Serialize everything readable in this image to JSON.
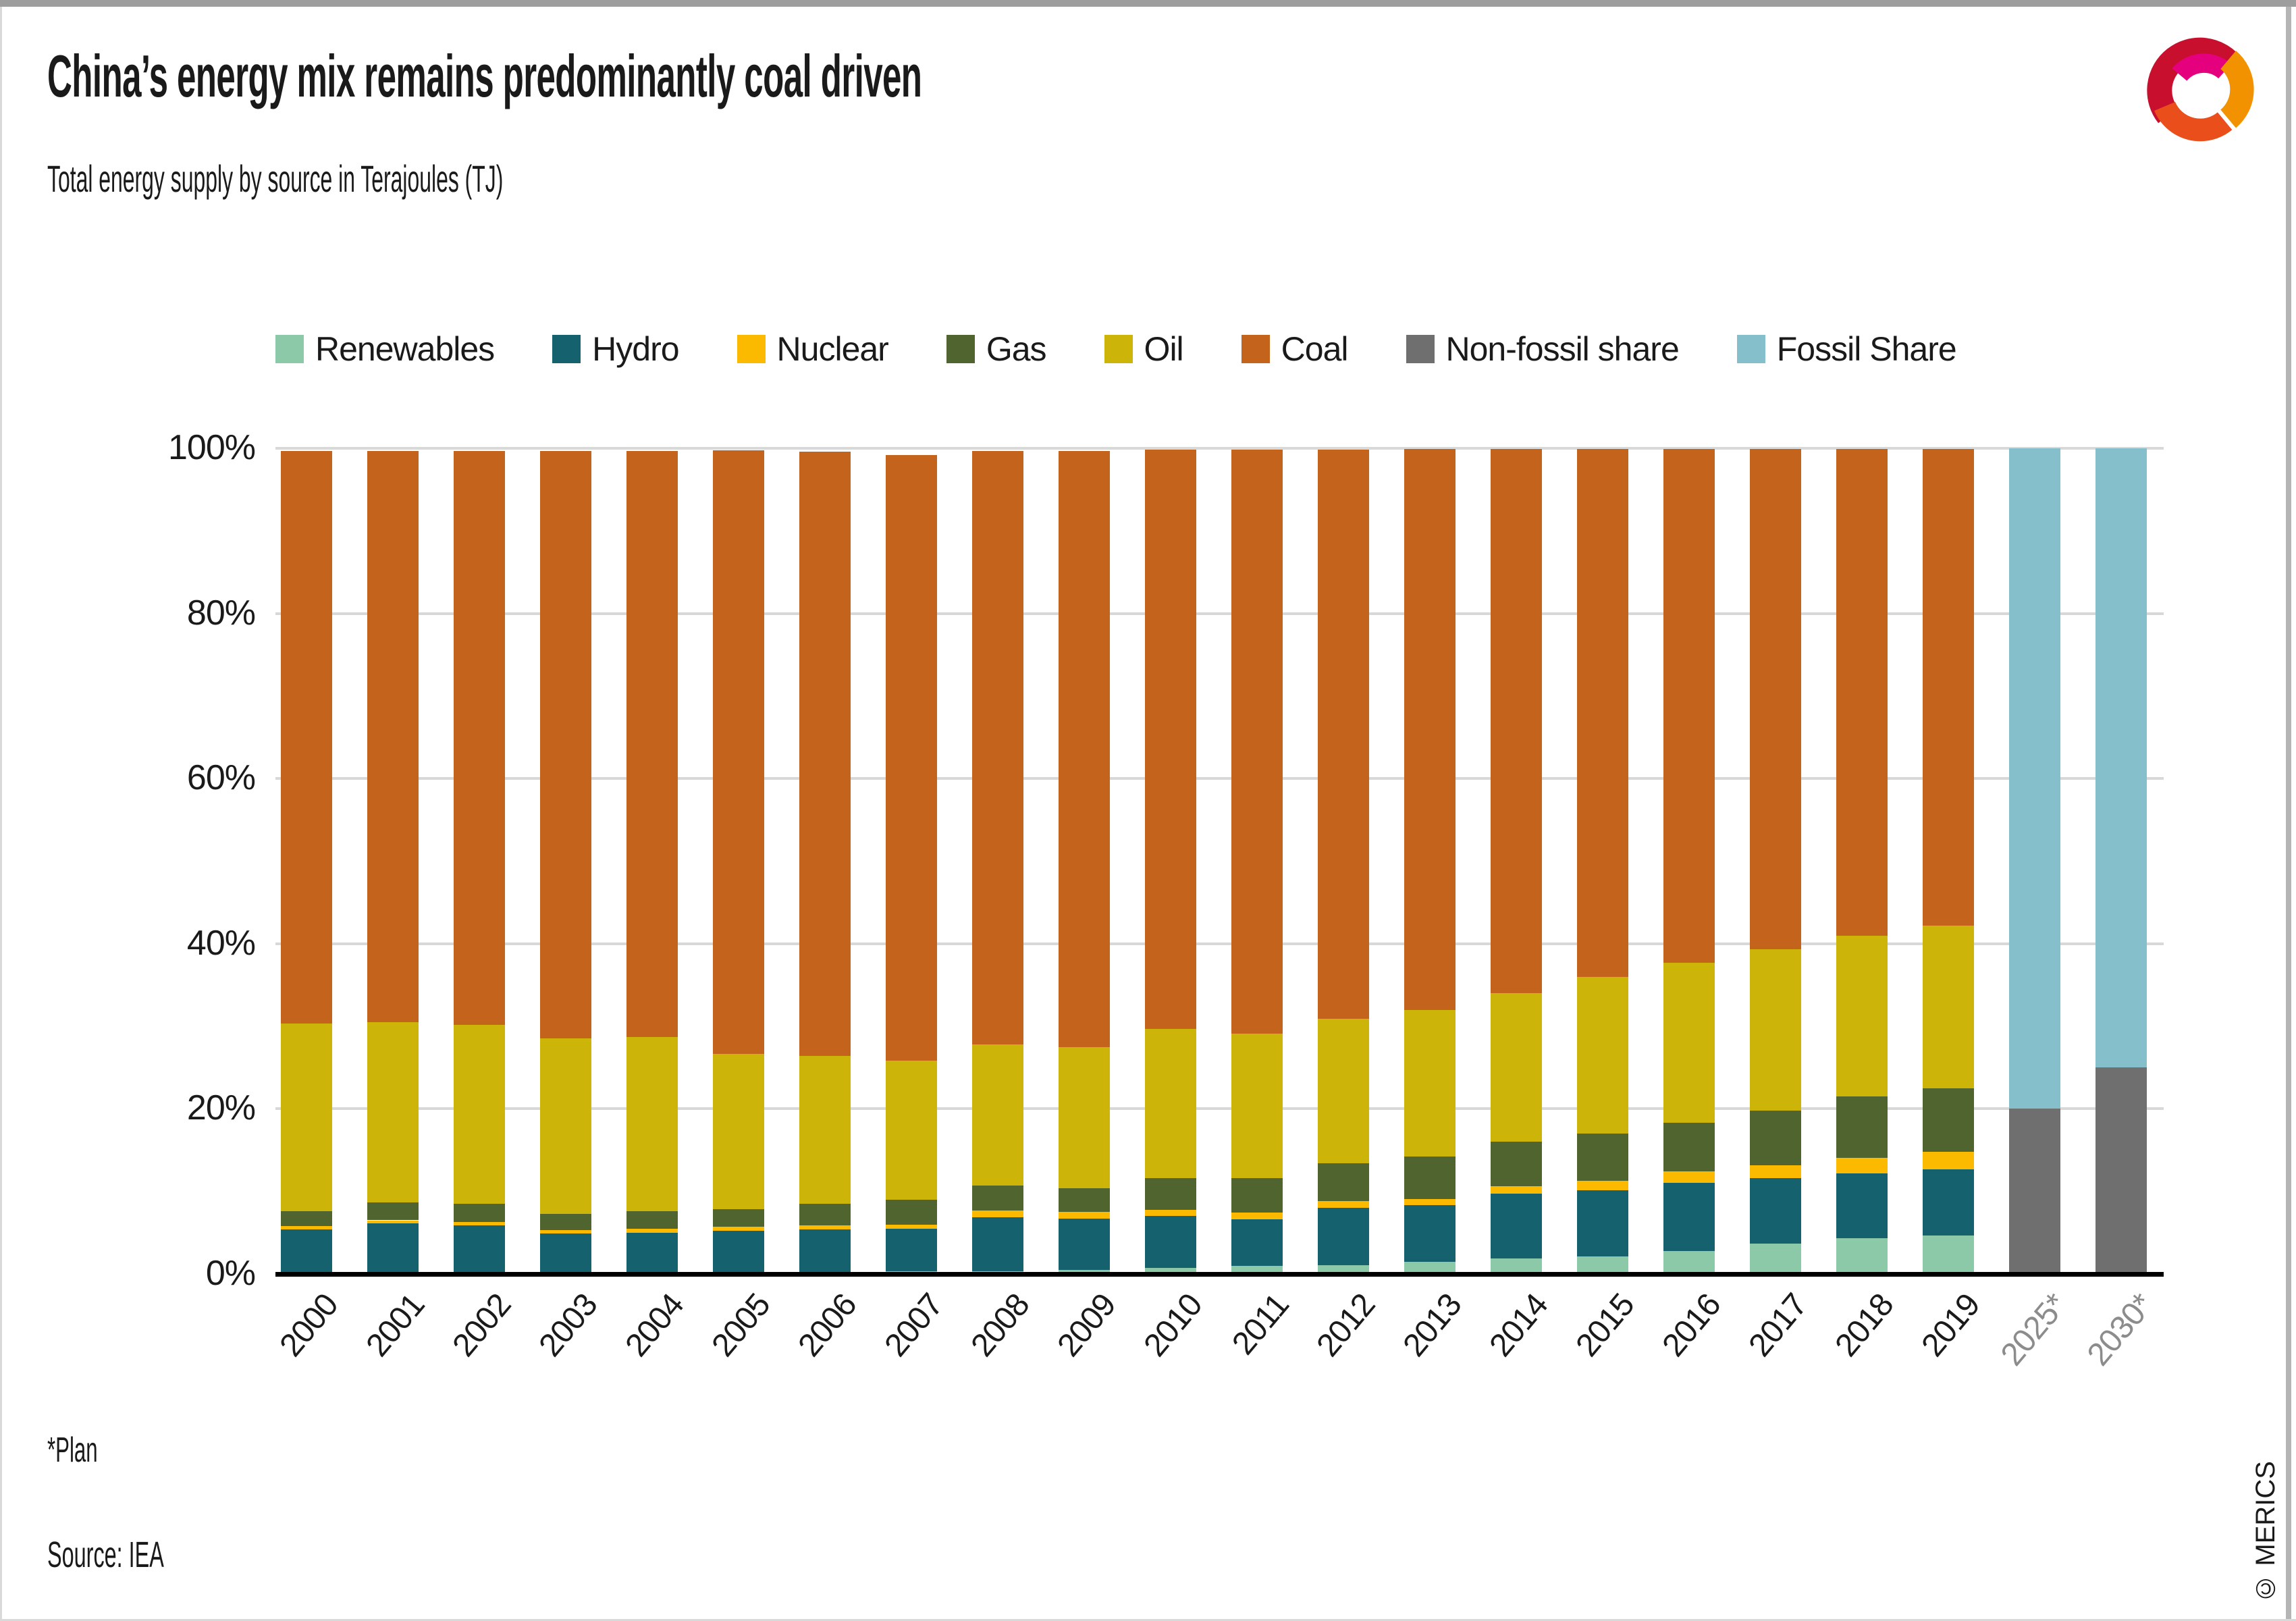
{
  "header": {
    "title": "China’s energy mix remains predominantly coal driven",
    "subtitle": "Total energy supply by source in Terajoules (TJ)"
  },
  "footer": {
    "footnote": "*Plan",
    "source": "Source: IEA",
    "watermark": "© MERICS"
  },
  "logo": {
    "name": "merics-swirl-logo",
    "colors": [
      "#c8102e",
      "#e5007d",
      "#f39200",
      "#e94e1b"
    ]
  },
  "colors": {
    "text": "#1a1a1a",
    "grid": "#d8d8d8",
    "axis": "#000000",
    "plan_label": "#8c8c8c",
    "year_label": "#1a1a1a"
  },
  "chart_data": {
    "type": "bar",
    "stacked": true,
    "unit": "percent of total energy supply",
    "title": "China’s energy mix remains predominantly coal driven",
    "xlabel": "",
    "ylabel": "",
    "ylim": [
      0,
      100
    ],
    "grid": "horizontal",
    "legend_position": "top",
    "yticks": [
      "0%",
      "20%",
      "40%",
      "60%",
      "80%",
      "100%"
    ],
    "categories": [
      "2000",
      "2001",
      "2002",
      "2003",
      "2004",
      "2005",
      "2006",
      "2007",
      "2008",
      "2009",
      "2010",
      "2011",
      "2012",
      "2013",
      "2014",
      "2015",
      "2016",
      "2017",
      "2018",
      "2019",
      "2025*",
      "2030*"
    ],
    "plan_categories": [
      "2025*",
      "2030*"
    ],
    "series": [
      {
        "name": "Renewables",
        "color": "#8cc9a8",
        "values": [
          0,
          0,
          0,
          0,
          0,
          0.15,
          0.2,
          0.3,
          0.3,
          0.5,
          0.7,
          1.0,
          1.1,
          1.5,
          1.9,
          2.1,
          2.8,
          3.7,
          4.3,
          4.7,
          null,
          null
        ]
      },
      {
        "name": "Hydro",
        "color": "#15616e",
        "values": [
          5.4,
          6.1,
          5.9,
          4.9,
          5.0,
          5.1,
          5.2,
          5.2,
          6.6,
          6.2,
          6.3,
          5.6,
          6.9,
          6.8,
          7.8,
          8.0,
          8.2,
          7.9,
          7.9,
          8.0,
          null,
          null
        ]
      },
      {
        "name": "Nuclear",
        "color": "#fbba00",
        "values": [
          0.4,
          0.4,
          0.4,
          0.4,
          0.5,
          0.5,
          0.5,
          0.5,
          0.8,
          0.8,
          0.8,
          0.8,
          0.8,
          0.8,
          0.9,
          1.2,
          1.4,
          1.6,
          1.9,
          2.1,
          null,
          null
        ]
      },
      {
        "name": "Gas",
        "color": "#50642f",
        "values": [
          1.8,
          2.2,
          2.2,
          2.0,
          2.1,
          2.1,
          2.6,
          3.0,
          3.0,
          2.9,
          3.8,
          4.2,
          4.6,
          5.1,
          5.4,
          5.7,
          5.9,
          6.6,
          7.4,
          7.7,
          null,
          null
        ]
      },
      {
        "name": "Oil",
        "color": "#cdb408",
        "values": [
          22.7,
          21.8,
          21.7,
          21.2,
          21.1,
          18.8,
          17.9,
          16.8,
          17.1,
          17.1,
          18.1,
          17.5,
          17.5,
          17.8,
          18.0,
          19.0,
          19.4,
          19.5,
          19.5,
          19.7,
          null,
          null
        ]
      },
      {
        "name": "Coal",
        "color": "#c4631b",
        "values": [
          69.4,
          69.2,
          69.5,
          71.2,
          71.0,
          73.1,
          73.2,
          73.4,
          71.9,
          72.2,
          70.1,
          70.7,
          68.9,
          67.9,
          65.9,
          63.9,
          62.2,
          60.6,
          58.9,
          57.7,
          null,
          null
        ]
      },
      {
        "name": "Non-fossil share",
        "color": "#6f6f6f",
        "values": [
          null,
          null,
          null,
          null,
          null,
          null,
          null,
          null,
          null,
          null,
          null,
          null,
          null,
          null,
          null,
          null,
          null,
          null,
          null,
          null,
          20,
          25
        ]
      },
      {
        "name": "Fossil Share",
        "color": "#84bfcb",
        "values": [
          null,
          null,
          null,
          null,
          null,
          null,
          null,
          null,
          null,
          null,
          null,
          null,
          null,
          null,
          null,
          null,
          null,
          null,
          null,
          null,
          80,
          75
        ]
      }
    ]
  }
}
